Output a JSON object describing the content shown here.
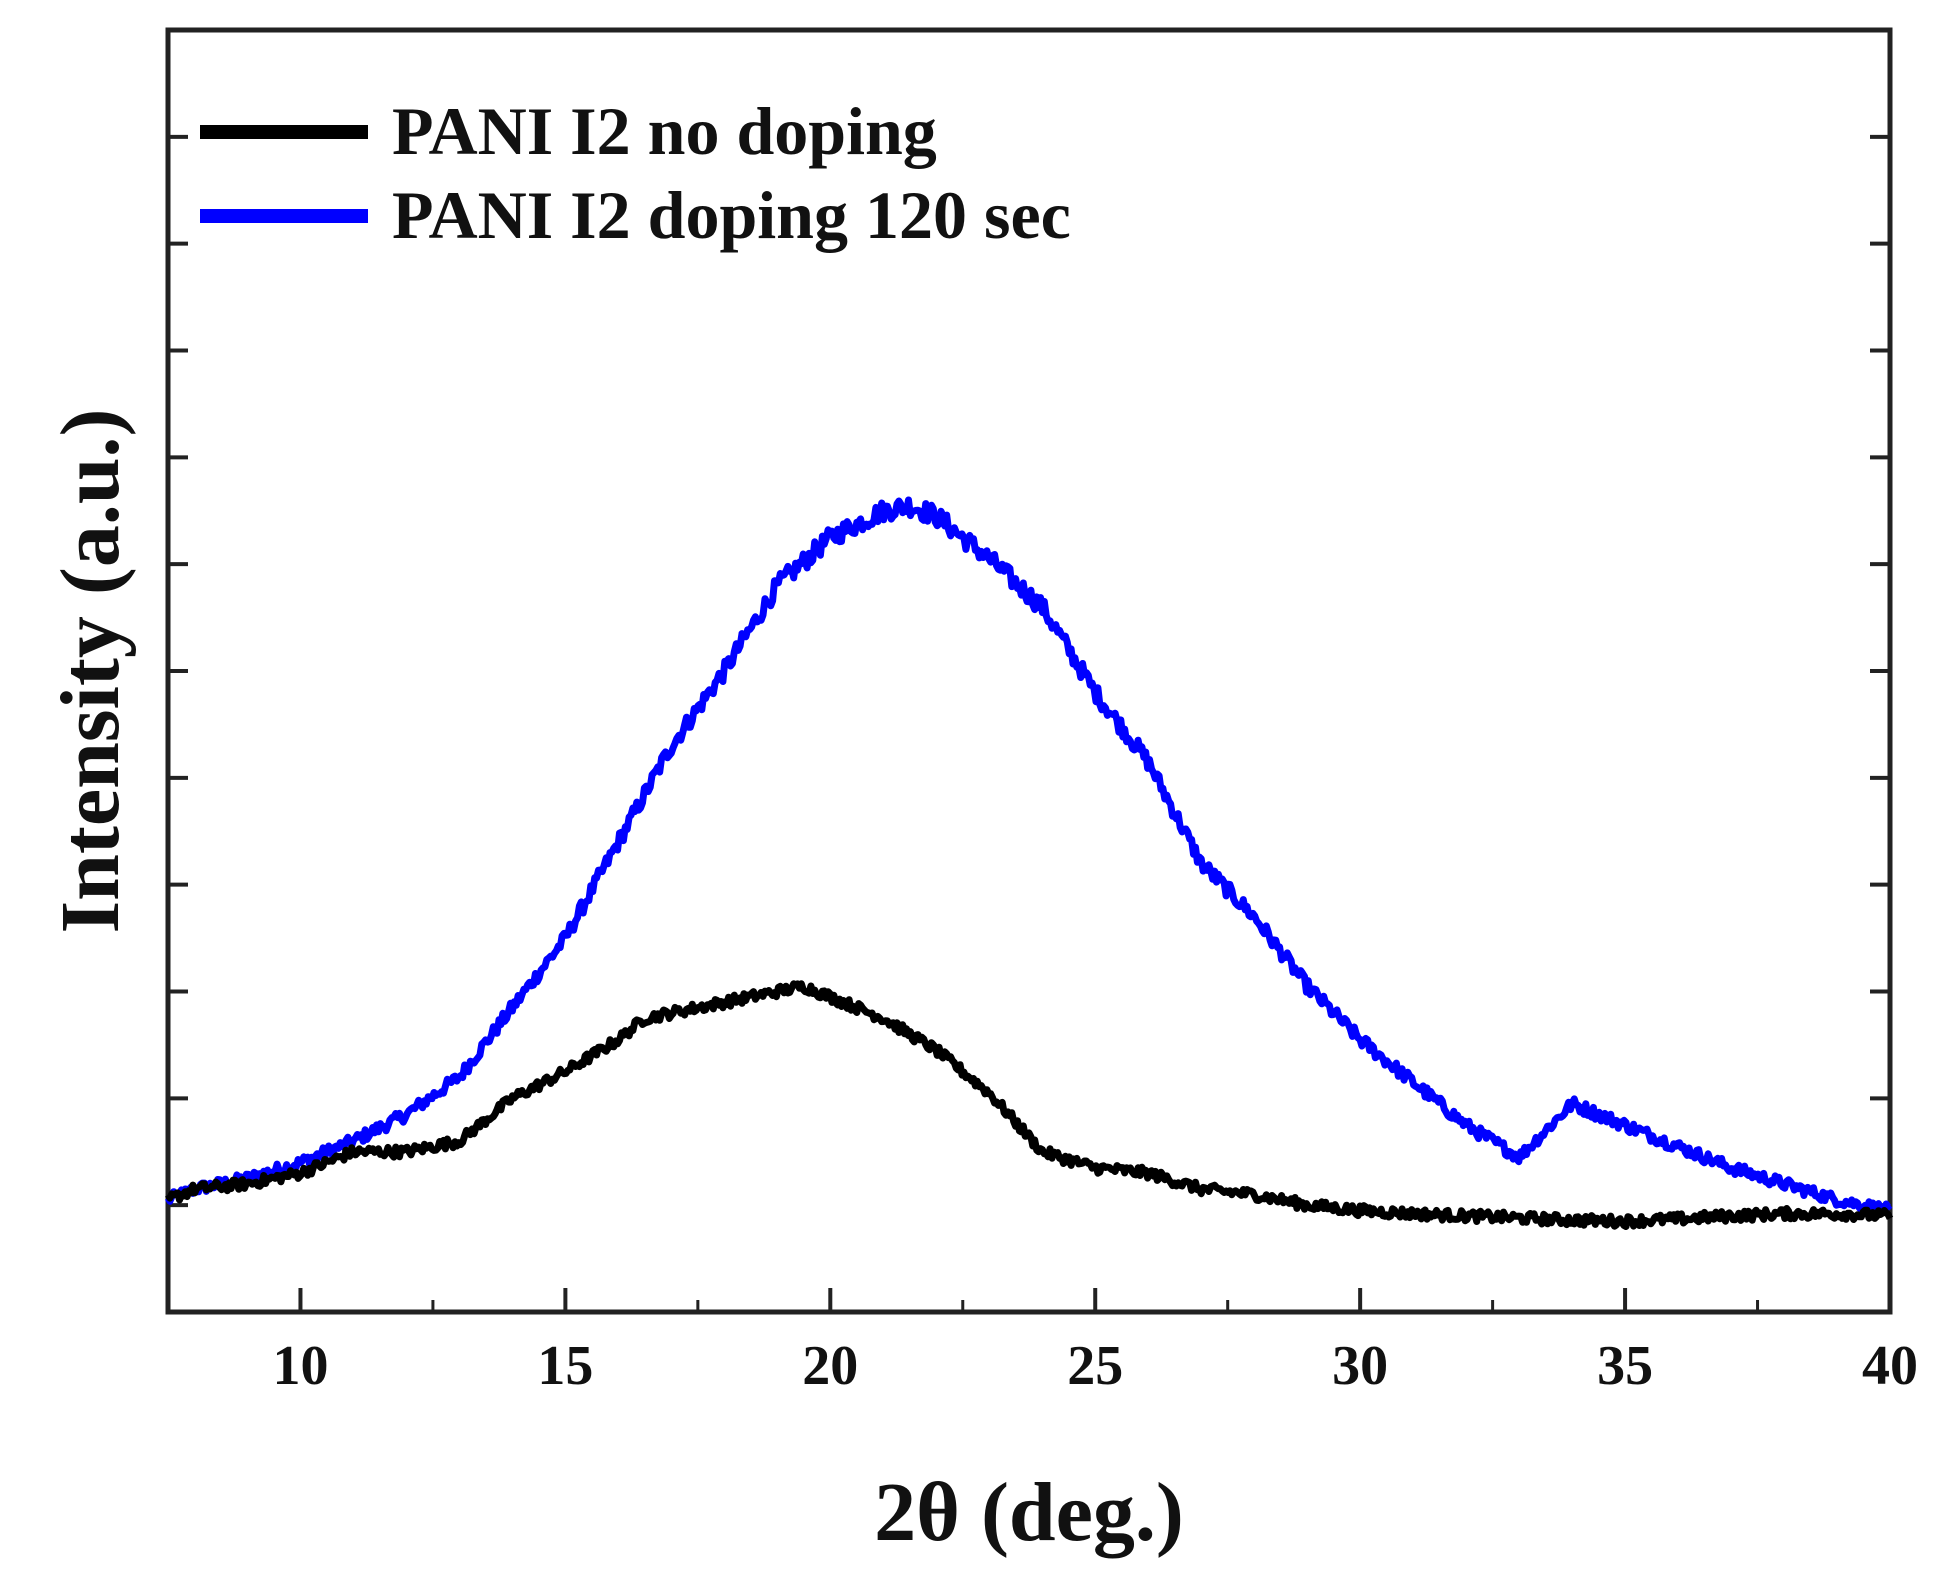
{
  "chart_data": {
    "type": "line",
    "title": "",
    "xlabel": "2θ (deg.)",
    "ylabel": "Intensity (a.u.)",
    "xlim": [
      7.5,
      40
    ],
    "ylim": [
      0,
      12
    ],
    "x_major_ticks": [
      10,
      15,
      20,
      25,
      30,
      35,
      40
    ],
    "x_minor_ticks": [
      12.5,
      17.5,
      22.5,
      27.5,
      32.5,
      37.5
    ],
    "y_ticks": [
      1,
      2,
      3,
      4,
      5,
      6,
      7,
      8,
      9,
      10,
      11
    ],
    "y_tick_labels_shown": false,
    "grid": false,
    "legend_location": "top-left",
    "series": [
      {
        "name": "PANI I2 no doping",
        "color": "#000000",
        "x": [
          7.5,
          8,
          9,
          10,
          11,
          12,
          13,
          14,
          15,
          16,
          16.5,
          17,
          18,
          19,
          19.5,
          20,
          21,
          22,
          23,
          24,
          25,
          26,
          27,
          28,
          29,
          30,
          31,
          32,
          33,
          34,
          35,
          36,
          37,
          38,
          39,
          40
        ],
        "y": [
          1.05,
          1.15,
          1.2,
          1.3,
          1.5,
          1.5,
          1.6,
          2.0,
          2.25,
          2.55,
          2.75,
          2.8,
          2.9,
          3.0,
          3.05,
          2.95,
          2.75,
          2.45,
          2.05,
          1.5,
          1.35,
          1.3,
          1.15,
          1.1,
          1.0,
          0.95,
          0.92,
          0.9,
          0.88,
          0.86,
          0.85,
          0.87,
          0.9,
          0.92,
          0.92,
          0.9
        ]
      },
      {
        "name": "PANI I2 doping 120 sec",
        "color": "#0000ff",
        "x": [
          7.5,
          8,
          9,
          10,
          11,
          12,
          13,
          14,
          15,
          16,
          17,
          18,
          19,
          20,
          21,
          21.5,
          22,
          23,
          24,
          25,
          26,
          27,
          28,
          29,
          30,
          31,
          32,
          33,
          34,
          35,
          36,
          37,
          38,
          39,
          40
        ],
        "y": [
          1.05,
          1.15,
          1.25,
          1.4,
          1.6,
          1.85,
          2.2,
          2.85,
          3.5,
          4.4,
          5.3,
          6.0,
          6.8,
          7.25,
          7.5,
          7.55,
          7.45,
          7.05,
          6.6,
          5.8,
          5.15,
          4.2,
          3.7,
          3.05,
          2.55,
          2.15,
          1.75,
          1.45,
          1.95,
          1.75,
          1.55,
          1.35,
          1.2,
          1.05,
          0.95
        ]
      }
    ]
  }
}
